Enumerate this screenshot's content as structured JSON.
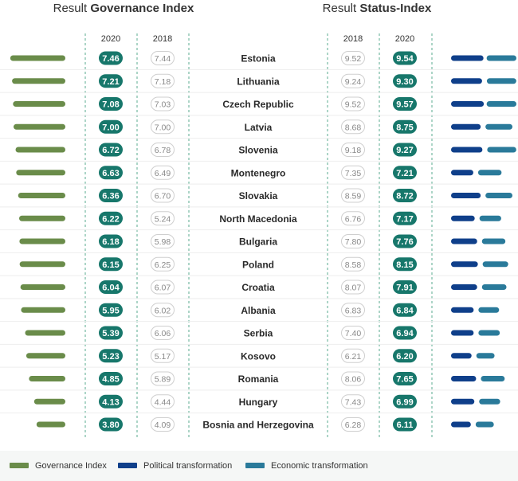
{
  "colors": {
    "governance_bar": "#6a8c4a",
    "political_bar": "#0f3f8a",
    "economic_bar": "#2a7a9a",
    "dark_pill": "#17776b",
    "light_pill_border": "#cfcfcf",
    "divider": "#5aab8f",
    "legend_bg": "#f5f7f6"
  },
  "headers": {
    "governance_prefix": "Result ",
    "governance_bold": "Governance Index",
    "status_prefix": "Result ",
    "status_bold": "Status-Index",
    "gov_col_2020": "2020",
    "gov_col_2018": "2018",
    "status_col_2018": "2018",
    "status_col_2020": "2020"
  },
  "legend": [
    {
      "label": "Governance Index",
      "color": "#6a8c4a"
    },
    {
      "label": "Political transformation",
      "color": "#0f3f8a"
    },
    {
      "label": "Economic transformation",
      "color": "#2a7a9a"
    }
  ],
  "chart_data": {
    "type": "table",
    "countries": [
      "Estonia",
      "Lithuania",
      "Czech Republic",
      "Latvia",
      "Slovenia",
      "Montenegro",
      "Slovakia",
      "North Macedonia",
      "Bulgaria",
      "Poland",
      "Croatia",
      "Albania",
      "Serbia",
      "Kosovo",
      "Romania",
      "Hungary",
      "Bosnia and Herzegovina"
    ],
    "governance_2020": [
      7.46,
      7.21,
      7.08,
      7.0,
      6.72,
      6.63,
      6.36,
      6.22,
      6.18,
      6.15,
      6.04,
      5.95,
      5.39,
      5.23,
      4.85,
      4.13,
      3.8
    ],
    "governance_2018": [
      7.44,
      7.18,
      7.03,
      7.0,
      6.78,
      6.49,
      6.7,
      5.24,
      5.98,
      6.25,
      6.07,
      6.02,
      6.06,
      5.17,
      5.89,
      4.44,
      4.09
    ],
    "status_2018": [
      9.52,
      9.24,
      9.52,
      8.68,
      9.18,
      7.35,
      8.59,
      6.76,
      7.8,
      8.58,
      8.07,
      6.83,
      7.4,
      6.21,
      8.06,
      7.43,
      6.28
    ],
    "status_2020": [
      9.54,
      9.3,
      9.57,
      8.75,
      9.27,
      7.21,
      8.72,
      7.17,
      7.76,
      8.15,
      7.91,
      6.84,
      6.94,
      6.2,
      7.65,
      6.99,
      6.11
    ],
    "political_transformation": [
      9.7,
      9.3,
      9.8,
      8.9,
      9.4,
      6.8,
      8.9,
      7.2,
      7.9,
      8.1,
      7.9,
      6.9,
      6.9,
      6.3,
      7.6,
      7.1,
      6.1
    ],
    "economic_transformation": [
      9.4,
      9.3,
      9.4,
      8.6,
      9.2,
      7.6,
      8.6,
      7.1,
      7.6,
      8.2,
      7.9,
      6.8,
      7.0,
      6.1,
      7.7,
      6.9,
      6.1
    ]
  }
}
